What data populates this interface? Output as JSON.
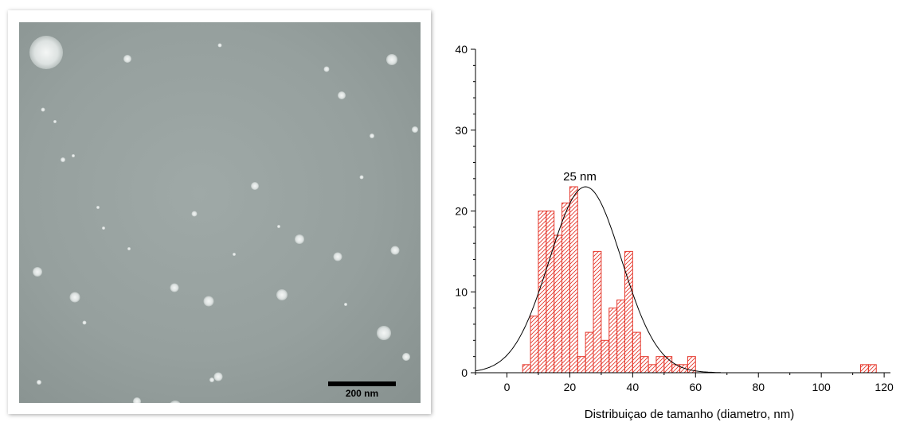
{
  "micrograph": {
    "scale_bar_label": "200 nm"
  },
  "chart_data": {
    "type": "bar",
    "xlabel": "Distribuiçao de tamanho (diametro, nm)",
    "ylabel": "",
    "xlim": [
      -10,
      122
    ],
    "ylim": [
      0,
      40
    ],
    "x_ticks": [
      0,
      20,
      40,
      60,
      80,
      100,
      120
    ],
    "y_ticks": [
      0,
      10,
      20,
      30,
      40
    ],
    "bin_width": 2.5,
    "bins": [
      {
        "x": 6.25,
        "value": 1
      },
      {
        "x": 8.75,
        "value": 7
      },
      {
        "x": 11.25,
        "value": 20
      },
      {
        "x": 13.75,
        "value": 20
      },
      {
        "x": 16.25,
        "value": 17
      },
      {
        "x": 18.75,
        "value": 21
      },
      {
        "x": 21.25,
        "value": 23
      },
      {
        "x": 23.75,
        "value": 2
      },
      {
        "x": 26.25,
        "value": 5
      },
      {
        "x": 28.75,
        "value": 15
      },
      {
        "x": 31.25,
        "value": 4
      },
      {
        "x": 33.75,
        "value": 8
      },
      {
        "x": 36.25,
        "value": 9
      },
      {
        "x": 38.75,
        "value": 15
      },
      {
        "x": 41.25,
        "value": 5
      },
      {
        "x": 43.75,
        "value": 2
      },
      {
        "x": 46.25,
        "value": 1
      },
      {
        "x": 48.75,
        "value": 2
      },
      {
        "x": 51.25,
        "value": 2
      },
      {
        "x": 53.75,
        "value": 1
      },
      {
        "x": 56.25,
        "value": 1
      },
      {
        "x": 58.75,
        "value": 2
      },
      {
        "x": 113.75,
        "value": 1
      },
      {
        "x": 116.25,
        "value": 1
      }
    ],
    "fit": {
      "type": "gaussian",
      "peak_x": 25,
      "peak_y": 23,
      "sigma": 11.5,
      "label": "25 nm"
    },
    "colors": {
      "bars": "#e5382c",
      "fit": "#000000",
      "axes": "#000000"
    },
    "grid": false,
    "legend": "none"
  }
}
